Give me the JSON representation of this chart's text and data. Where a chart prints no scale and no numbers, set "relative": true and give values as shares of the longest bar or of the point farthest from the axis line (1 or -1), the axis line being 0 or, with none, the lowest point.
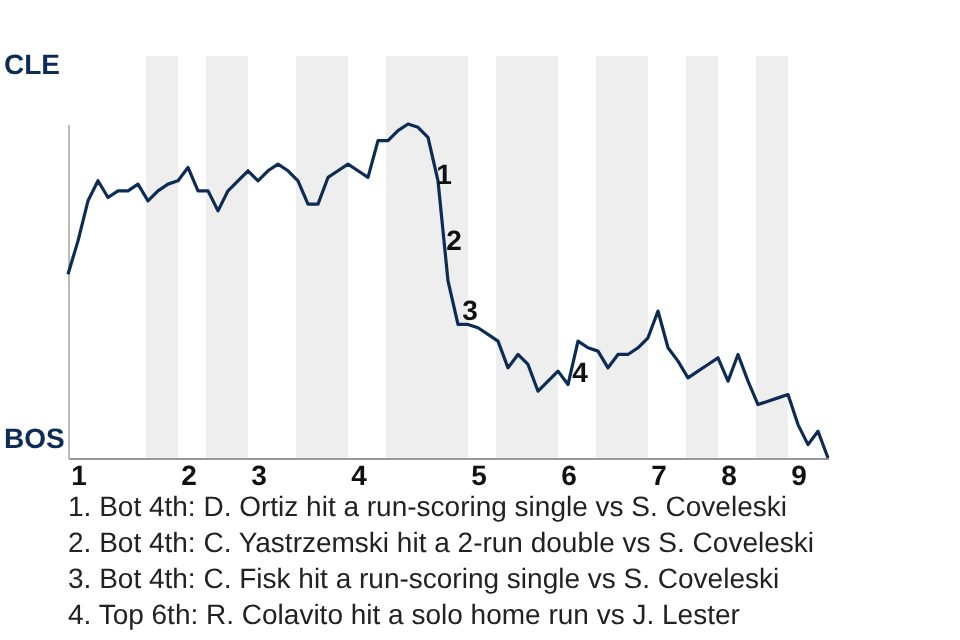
{
  "chart_data": {
    "type": "line",
    "relative": true,
    "categories": [
      null,
      "1",
      null,
      null,
      null,
      null,
      null,
      null,
      null,
      null,
      null,
      null,
      "2",
      null,
      null,
      null,
      null,
      null,
      null,
      "3",
      null,
      null,
      null,
      null,
      null,
      null,
      null,
      null,
      null,
      "4",
      null,
      null,
      null,
      null,
      null,
      null,
      null,
      null,
      null,
      null,
      null,
      "5",
      null,
      null,
      null,
      null,
      null,
      null,
      null,
      null,
      "6",
      null,
      null,
      null,
      null,
      null,
      null,
      null,
      null,
      "7",
      null,
      null,
      null,
      null,
      null,
      null,
      "8",
      null,
      null,
      null,
      null,
      null,
      null,
      "9",
      null,
      null,
      null
    ],
    "series": [
      {
        "color": "#0c2c56",
        "values": [
          0.55,
          0.65,
          0.77,
          0.83,
          0.78,
          0.8,
          0.8,
          0.82,
          0.77,
          0.8,
          0.82,
          0.83,
          0.87,
          0.8,
          0.8,
          0.74,
          0.8,
          0.83,
          0.86,
          0.83,
          0.86,
          0.88,
          0.86,
          0.83,
          0.76,
          0.76,
          0.84,
          0.86,
          0.88,
          0.86,
          0.84,
          0.95,
          0.95,
          0.98,
          1,
          0.99,
          0.96,
          0.83,
          0.53,
          0.4,
          0.4,
          0.39,
          0.37,
          0.35,
          0.27,
          0.31,
          0.28,
          0.2,
          0.23,
          0.26,
          0.22,
          0.35,
          0.33,
          0.32,
          0.27,
          0.31,
          0.31,
          0.33,
          0.36,
          0.44,
          0.33,
          0.29,
          0.24,
          0.26,
          0.28,
          0.3,
          0.23,
          0.31,
          0.23,
          0.16,
          0.17,
          0.18,
          0.19,
          0.1,
          0.04,
          0.08,
          0
        ]
      }
    ],
    "annotations": [
      "CLE",
      "BOS",
      "1",
      "2",
      "3",
      "4",
      "1. Bot 4th: D. Ortiz hit a run-scoring single vs S. Coveleski",
      "2. Bot 4th: C. Yastrzemski hit a 2-run double vs S. Coveleski",
      "3. Bot 4th: C. Fisk hit a run-scoring single vs S. Coveleski",
      "4. Top 6th: R. Colavito hit a solo home run vs J. Lester"
    ]
  }
}
